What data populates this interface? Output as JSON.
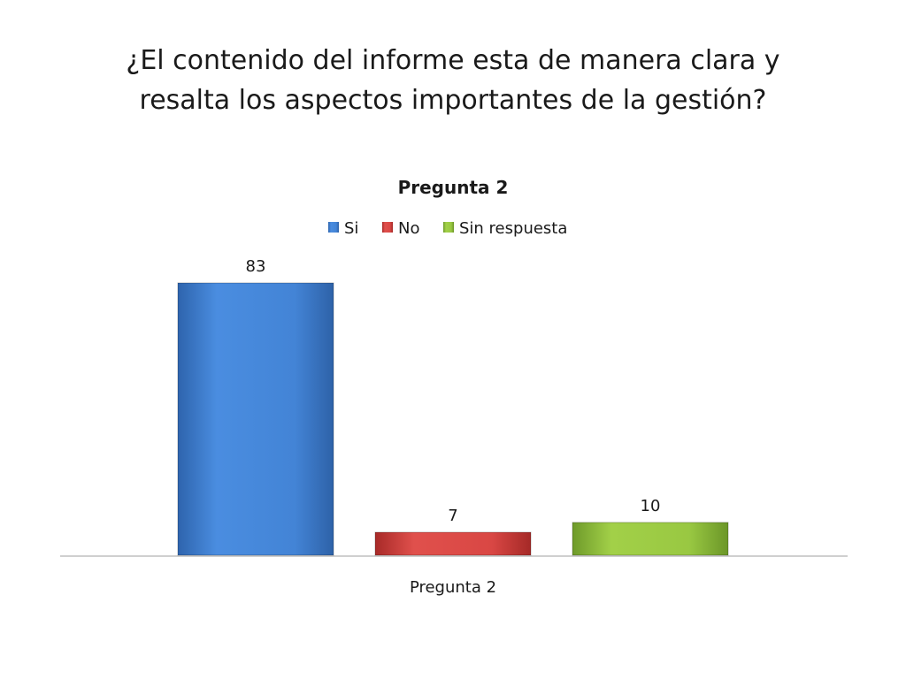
{
  "slide": {
    "title_line1": "¿El contenido del informe esta de manera clara y",
    "title_line2": "resalta los aspectos importantes de la gestión?"
  },
  "chart_data": {
    "type": "bar",
    "title": "Pregunta 2",
    "categories": [
      "Pregunta 2"
    ],
    "series": [
      {
        "name": "Si",
        "values": [
          83
        ],
        "color": "#3f7fd2"
      },
      {
        "name": "No",
        "values": [
          7
        ],
        "color": "#d33d3a"
      },
      {
        "name": "Sin respuesta",
        "values": [
          10
        ],
        "color": "#92c23e"
      }
    ],
    "ylim": [
      0,
      83
    ],
    "grid": false,
    "legend": "top",
    "data_labels": true
  }
}
